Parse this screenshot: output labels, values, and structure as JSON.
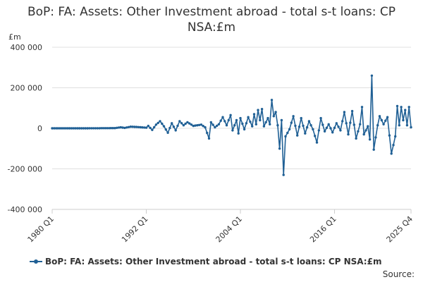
{
  "chart_data": {
    "type": "line",
    "title": "BoP: FA: Assets: Other Investment abroad - total s-t loans: CP NSA:£m",
    "unit_label": "£m",
    "ylim": [
      -400000,
      400000
    ],
    "y_ticks": [
      -400000,
      -200000,
      0,
      200000,
      400000
    ],
    "y_tick_labels": [
      "-400 000",
      "-200 000",
      "0",
      "200 000",
      "400 000"
    ],
    "x_ticks": [
      "1980 Q1",
      "1992 Q1",
      "2004 Q1",
      "2016 Q1",
      "2025 Q4"
    ],
    "x_start": "1980 Q1",
    "x_end": "2025 Q4",
    "grid": "horizontal",
    "legend_position": "bottom",
    "source_label": "Source:",
    "color": "#206095",
    "series": [
      {
        "name": "BoP: FA: Assets: Other Investment abroad - total s-t loans: CP NSA:£m",
        "keyframes": [
          [
            "1980 Q1",
            0
          ],
          [
            "1984 Q1",
            0
          ],
          [
            "1988 Q1",
            1000
          ],
          [
            "1988 Q4",
            5000
          ],
          [
            "1989 Q2",
            2000
          ],
          [
            "1990 Q1",
            8000
          ],
          [
            "1991 Q1",
            6000
          ],
          [
            "1992 Q1",
            3000
          ],
          [
            "1992 Q2",
            12000
          ],
          [
            "1992 Q4",
            -8000
          ],
          [
            "1993 Q2",
            18000
          ],
          [
            "1993 Q4",
            35000
          ],
          [
            "1994 Q2",
            10000
          ],
          [
            "1994 Q4",
            -22000
          ],
          [
            "1995 Q2",
            25000
          ],
          [
            "1995 Q4",
            -10000
          ],
          [
            "1996 Q2",
            35000
          ],
          [
            "1996 Q4",
            15000
          ],
          [
            "1997 Q2",
            30000
          ],
          [
            "1998 Q1",
            12000
          ],
          [
            "1999 Q1",
            18000
          ],
          [
            "1999 Q3",
            5000
          ],
          [
            "2000 Q1",
            -50000
          ],
          [
            "2000 Q2",
            30000
          ],
          [
            "2000 Q4",
            5000
          ],
          [
            "2001 Q2",
            20000
          ],
          [
            "2001 Q4",
            55000
          ],
          [
            "2002 Q2",
            15000
          ],
          [
            "2002 Q4",
            65000
          ],
          [
            "2003 Q1",
            -10000
          ],
          [
            "2003 Q3",
            40000
          ],
          [
            "2003 Q4",
            -25000
          ],
          [
            "2004 Q1",
            50000
          ],
          [
            "2004 Q3",
            -5000
          ],
          [
            "2005 Q1",
            55000
          ],
          [
            "2005 Q3",
            10000
          ],
          [
            "2005 Q4",
            70000
          ],
          [
            "2006 Q1",
            20000
          ],
          [
            "2006 Q2",
            90000
          ],
          [
            "2006 Q3",
            40000
          ],
          [
            "2006 Q4",
            95000
          ],
          [
            "2007 Q1",
            10000
          ],
          [
            "2007 Q3",
            50000
          ],
          [
            "2007 Q4",
            20000
          ],
          [
            "2008 Q1",
            140000
          ],
          [
            "2008 Q2",
            60000
          ],
          [
            "2008 Q3",
            80000
          ],
          [
            "2008 Q4",
            15000
          ],
          [
            "2009 Q1",
            -100000
          ],
          [
            "2009 Q2",
            40000
          ],
          [
            "2009 Q3",
            -230000
          ],
          [
            "2009 Q4",
            -40000
          ],
          [
            "2010 Q2",
            -5000
          ],
          [
            "2010 Q4",
            60000
          ],
          [
            "2011 Q2",
            -35000
          ],
          [
            "2011 Q4",
            50000
          ],
          [
            "2012 Q2",
            -25000
          ],
          [
            "2012 Q4",
            35000
          ],
          [
            "2013 Q2",
            -5000
          ],
          [
            "2013 Q4",
            -70000
          ],
          [
            "2014 Q2",
            50000
          ],
          [
            "2014 Q4",
            -15000
          ],
          [
            "2015 Q2",
            20000
          ],
          [
            "2015 Q4",
            -20000
          ],
          [
            "2016 Q2",
            25000
          ],
          [
            "2016 Q4",
            -10000
          ],
          [
            "2017 Q2",
            80000
          ],
          [
            "2017 Q4",
            -30000
          ],
          [
            "2018 Q2",
            85000
          ],
          [
            "2018 Q4",
            -50000
          ],
          [
            "2019 Q2",
            20000
          ],
          [
            "2019 Q3",
            105000
          ],
          [
            "2019 Q4",
            -30000
          ],
          [
            "2020 Q2",
            10000
          ],
          [
            "2020 Q3",
            -55000
          ],
          [
            "2020 Q4",
            260000
          ],
          [
            "2021 Q1",
            -105000
          ],
          [
            "2021 Q3",
            15000
          ],
          [
            "2021 Q4",
            60000
          ],
          [
            "2022 Q2",
            20000
          ],
          [
            "2022 Q4",
            55000
          ],
          [
            "2023 Q2",
            -125000
          ],
          [
            "2023 Q4",
            -40000
          ],
          [
            "2024 Q1",
            110000
          ],
          [
            "2024 Q2",
            15000
          ],
          [
            "2024 Q3",
            105000
          ],
          [
            "2024 Q4",
            40000
          ],
          [
            "2025 Q1",
            90000
          ],
          [
            "2025 Q2",
            15000
          ],
          [
            "2025 Q3",
            105000
          ],
          [
            "2025 Q4",
            5000
          ]
        ]
      }
    ]
  }
}
